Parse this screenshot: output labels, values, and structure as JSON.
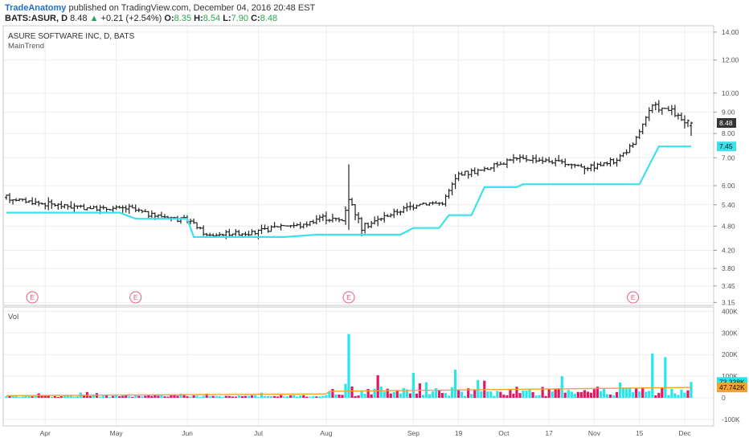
{
  "header": {
    "publisher": "TradeAnatomy",
    "published_text": "published on TradingView.com, December 04, 2016 20:48 EST",
    "symbol_line": "BATS:ASUR, D",
    "last": "8.48",
    "change_arrow": "▲",
    "change": "+0.21 (+2.54%)",
    "o_label": "O:",
    "o": "8.35",
    "h_label": "H:",
    "h": "8.54",
    "l_label": "L:",
    "l": "7.90",
    "c_label": "C:",
    "c": "8.48"
  },
  "chart": {
    "title": "ASURE SOFTWARE INC, D, BATS",
    "indicator": "MainTrend",
    "volume_label": "Vol",
    "price_ticks": [
      "14.00",
      "12.00",
      "10.00",
      "9.00",
      "8.00",
      "7.00",
      "6.00",
      "5.40",
      "4.80",
      "4.20",
      "3.80",
      "3.45",
      "3.15"
    ],
    "volume_ticks": [
      "400K",
      "300K",
      "200K",
      "100K",
      "0",
      "-100K"
    ],
    "month_labels": [
      "Apr",
      "May",
      "Jun",
      "Jul",
      "Aug",
      "Sep",
      "19",
      "Oct",
      "17",
      "Nov",
      "15",
      "Dec"
    ],
    "last_price_tag": "8.48",
    "trend_tag": "7.45",
    "volume_tag": "73.338K",
    "volume_ma_tag": "47.742K",
    "earnings_marker": "E",
    "colors": {
      "trend": "#3ee0ec",
      "up_vol": "#26e6ee",
      "down_vol": "#e31764",
      "vol_ma": "#f5a233",
      "bars": "#222222"
    }
  },
  "chart_data": {
    "type": "line",
    "title": "ASURE SOFTWARE INC, D, BATS",
    "log_scale": true,
    "ylim": [
      3.1,
      14.5
    ],
    "volume_ylim": [
      -130000,
      420000
    ],
    "grid": true,
    "months": [
      {
        "label": "Apr",
        "day": 12
      },
      {
        "label": "May",
        "day": 34
      },
      {
        "label": "Jun",
        "day": 56
      },
      {
        "label": "Jul",
        "day": 78
      },
      {
        "label": "Aug",
        "day": 99
      },
      {
        "label": "Sep",
        "day": 126
      },
      {
        "label": "19",
        "day": 140
      },
      {
        "label": "Oct",
        "day": 154
      },
      {
        "label": "17",
        "day": 168
      },
      {
        "label": "Nov",
        "day": 182
      },
      {
        "label": "15",
        "day": 196
      },
      {
        "label": "Dec",
        "day": 210
      }
    ],
    "earnings_days": [
      8,
      40,
      106,
      194
    ],
    "price_anchors": [
      [
        0,
        5.62
      ],
      [
        10,
        5.45
      ],
      [
        20,
        5.35
      ],
      [
        30,
        5.28
      ],
      [
        38,
        5.3
      ],
      [
        44,
        5.12
      ],
      [
        50,
        5.05
      ],
      [
        57,
        4.93
      ],
      [
        62,
        4.55
      ],
      [
        70,
        4.62
      ],
      [
        77,
        4.62
      ],
      [
        85,
        4.82
      ],
      [
        92,
        4.82
      ],
      [
        97,
        5.05
      ],
      [
        104,
        4.95
      ],
      [
        106,
        5.6
      ],
      [
        110,
        4.75
      ],
      [
        118,
        5.1
      ],
      [
        128,
        5.45
      ],
      [
        135,
        5.45
      ],
      [
        140,
        6.4
      ],
      [
        148,
        6.55
      ],
      [
        156,
        6.95
      ],
      [
        164,
        6.95
      ],
      [
        172,
        6.8
      ],
      [
        180,
        6.65
      ],
      [
        188,
        6.85
      ],
      [
        194,
        7.5
      ],
      [
        200,
        9.3
      ],
      [
        206,
        9.05
      ],
      [
        210,
        8.48
      ]
    ],
    "spikes": [
      {
        "day": 106,
        "high": 6.75,
        "low": 4.7
      }
    ],
    "last_bar": {
      "open": 8.35,
      "high": 8.54,
      "low": 7.9,
      "close": 8.48
    },
    "trend_line": [
      [
        0,
        5.17
      ],
      [
        35,
        5.17
      ],
      [
        40,
        5.0
      ],
      [
        56,
        5.0
      ],
      [
        58,
        4.52
      ],
      [
        86,
        4.52
      ],
      [
        96,
        4.58
      ],
      [
        122,
        4.58
      ],
      [
        126,
        4.75
      ],
      [
        134,
        4.75
      ],
      [
        137,
        5.1
      ],
      [
        144,
        5.1
      ],
      [
        148,
        5.95
      ],
      [
        158,
        5.95
      ],
      [
        160,
        6.05
      ],
      [
        196,
        6.05
      ],
      [
        202,
        7.45
      ],
      [
        212,
        7.45
      ]
    ],
    "volume_spikes": [
      {
        "day": 106,
        "value": 295000
      },
      {
        "day": 139,
        "value": 130000
      },
      {
        "day": 172,
        "value": 100000
      },
      {
        "day": 200,
        "value": 205000
      },
      {
        "day": 204,
        "value": 188000
      }
    ],
    "volume_ma": 47742,
    "last_volume": 73338,
    "n_days": 213
  }
}
